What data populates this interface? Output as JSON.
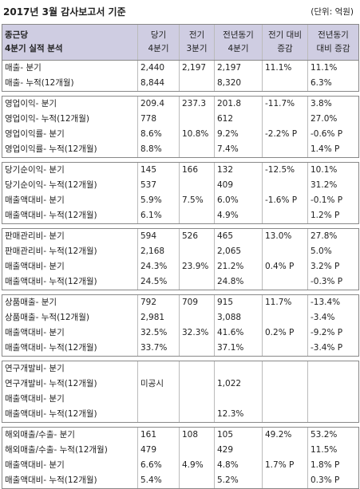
{
  "title": "2017년 3월 감사보고서 기준",
  "unit": "(단위: 억원)",
  "header": {
    "company": "종근당",
    "subtitle": "4분기 실적 분석",
    "col1a": "당기",
    "col1b": "4분기",
    "col2a": "전기",
    "col2b": "3분기",
    "col3a": "전년동기",
    "col3b": "4분기",
    "col4a": "전기 대비",
    "col4b": "증감",
    "col5a": "전년동기",
    "col5b": "대비 증감"
  },
  "groups": [
    {
      "rows": [
        [
          "매출- 분기",
          "2,440",
          "2,197",
          "2,197",
          "11.1%",
          "11.1%"
        ],
        [
          "매출- 누적(12개월)",
          "8,844",
          "",
          "8,320",
          "",
          "6.3%"
        ]
      ]
    },
    {
      "rows": [
        [
          "영업이익- 분기",
          "209.4",
          "237.3",
          "201.8",
          "-11.7%",
          "3.8%"
        ],
        [
          "영업이익- 누적(12개월)",
          "778",
          "",
          "612",
          "",
          "27.0%"
        ],
        [
          "영업이익률- 분기",
          "8.6%",
          "10.8%",
          "9.2%",
          "-2.2% P",
          "-0.6% P"
        ],
        [
          "영업이익률- 누적(12개월)",
          "8.8%",
          "",
          "7.4%",
          "",
          "1.4% P"
        ]
      ]
    },
    {
      "rows": [
        [
          "당기순이익- 분기",
          "145",
          "166",
          "132",
          "-12.5%",
          "10.1%"
        ],
        [
          "당기순이익- 누적(12개월)",
          "537",
          "",
          "409",
          "",
          "31.2%"
        ],
        [
          "매출액대비- 분기",
          "5.9%",
          "7.5%",
          "6.0%",
          "-1.6% P",
          "-0.1% P"
        ],
        [
          "매출액대비- 누적(12개월)",
          "6.1%",
          "",
          "4.9%",
          "",
          "1.2% P"
        ]
      ]
    },
    {
      "rows": [
        [
          "판매관리비- 분기",
          "594",
          "526",
          "465",
          "13.0%",
          "27.8%"
        ],
        [
          "판매관리비- 누적(12개월)",
          "2,168",
          "",
          "2,065",
          "",
          "5.0%"
        ],
        [
          "매출액대비- 분기",
          "24.3%",
          "23.9%",
          "21.2%",
          "0.4% P",
          "3.2% P"
        ],
        [
          "매출액대비- 누적(12개월)",
          "24.5%",
          "",
          "24.8%",
          "",
          "-0.3% P"
        ]
      ]
    },
    {
      "rows": [
        [
          "상품매출- 분기",
          "792",
          "709",
          "915",
          "11.7%",
          "-13.4%"
        ],
        [
          "상품매출- 누적(12개월)",
          "2,981",
          "",
          "3,088",
          "",
          "-3.4%"
        ],
        [
          "매출액대비- 분기",
          "32.5%",
          "32.3%",
          "41.6%",
          "0.2% P",
          "-9.2% P"
        ],
        [
          "매출액대비- 누적(12개월)",
          "33.7%",
          "",
          "37.1%",
          "",
          "-3.4% P"
        ]
      ]
    },
    {
      "rows": [
        [
          "연구개발비- 분기",
          "",
          "",
          "",
          "",
          ""
        ],
        [
          "연구개발비- 누적(12개월)",
          "미공시",
          "",
          "1,022",
          "",
          ""
        ],
        [
          "매출액대비- 분기",
          "",
          "",
          "",
          "",
          ""
        ],
        [
          "매출액대비- 누적(12개월)",
          "",
          "",
          "12.3%",
          "",
          ""
        ]
      ]
    },
    {
      "rows": [
        [
          "해외매출/수출- 분기",
          "161",
          "108",
          "105",
          "49.2%",
          "53.2%"
        ],
        [
          "해외매출/수출- 누적(12개월)",
          "479",
          "",
          "429",
          "",
          "11.5%"
        ],
        [
          "매출액대비- 분기",
          "6.6%",
          "4.9%",
          "4.8%",
          "1.7% P",
          "1.8% P"
        ],
        [
          "매출액대비- 누적(12개월)",
          "5.4%",
          "",
          "5.2%",
          "",
          "0.3% P"
        ]
      ]
    }
  ]
}
